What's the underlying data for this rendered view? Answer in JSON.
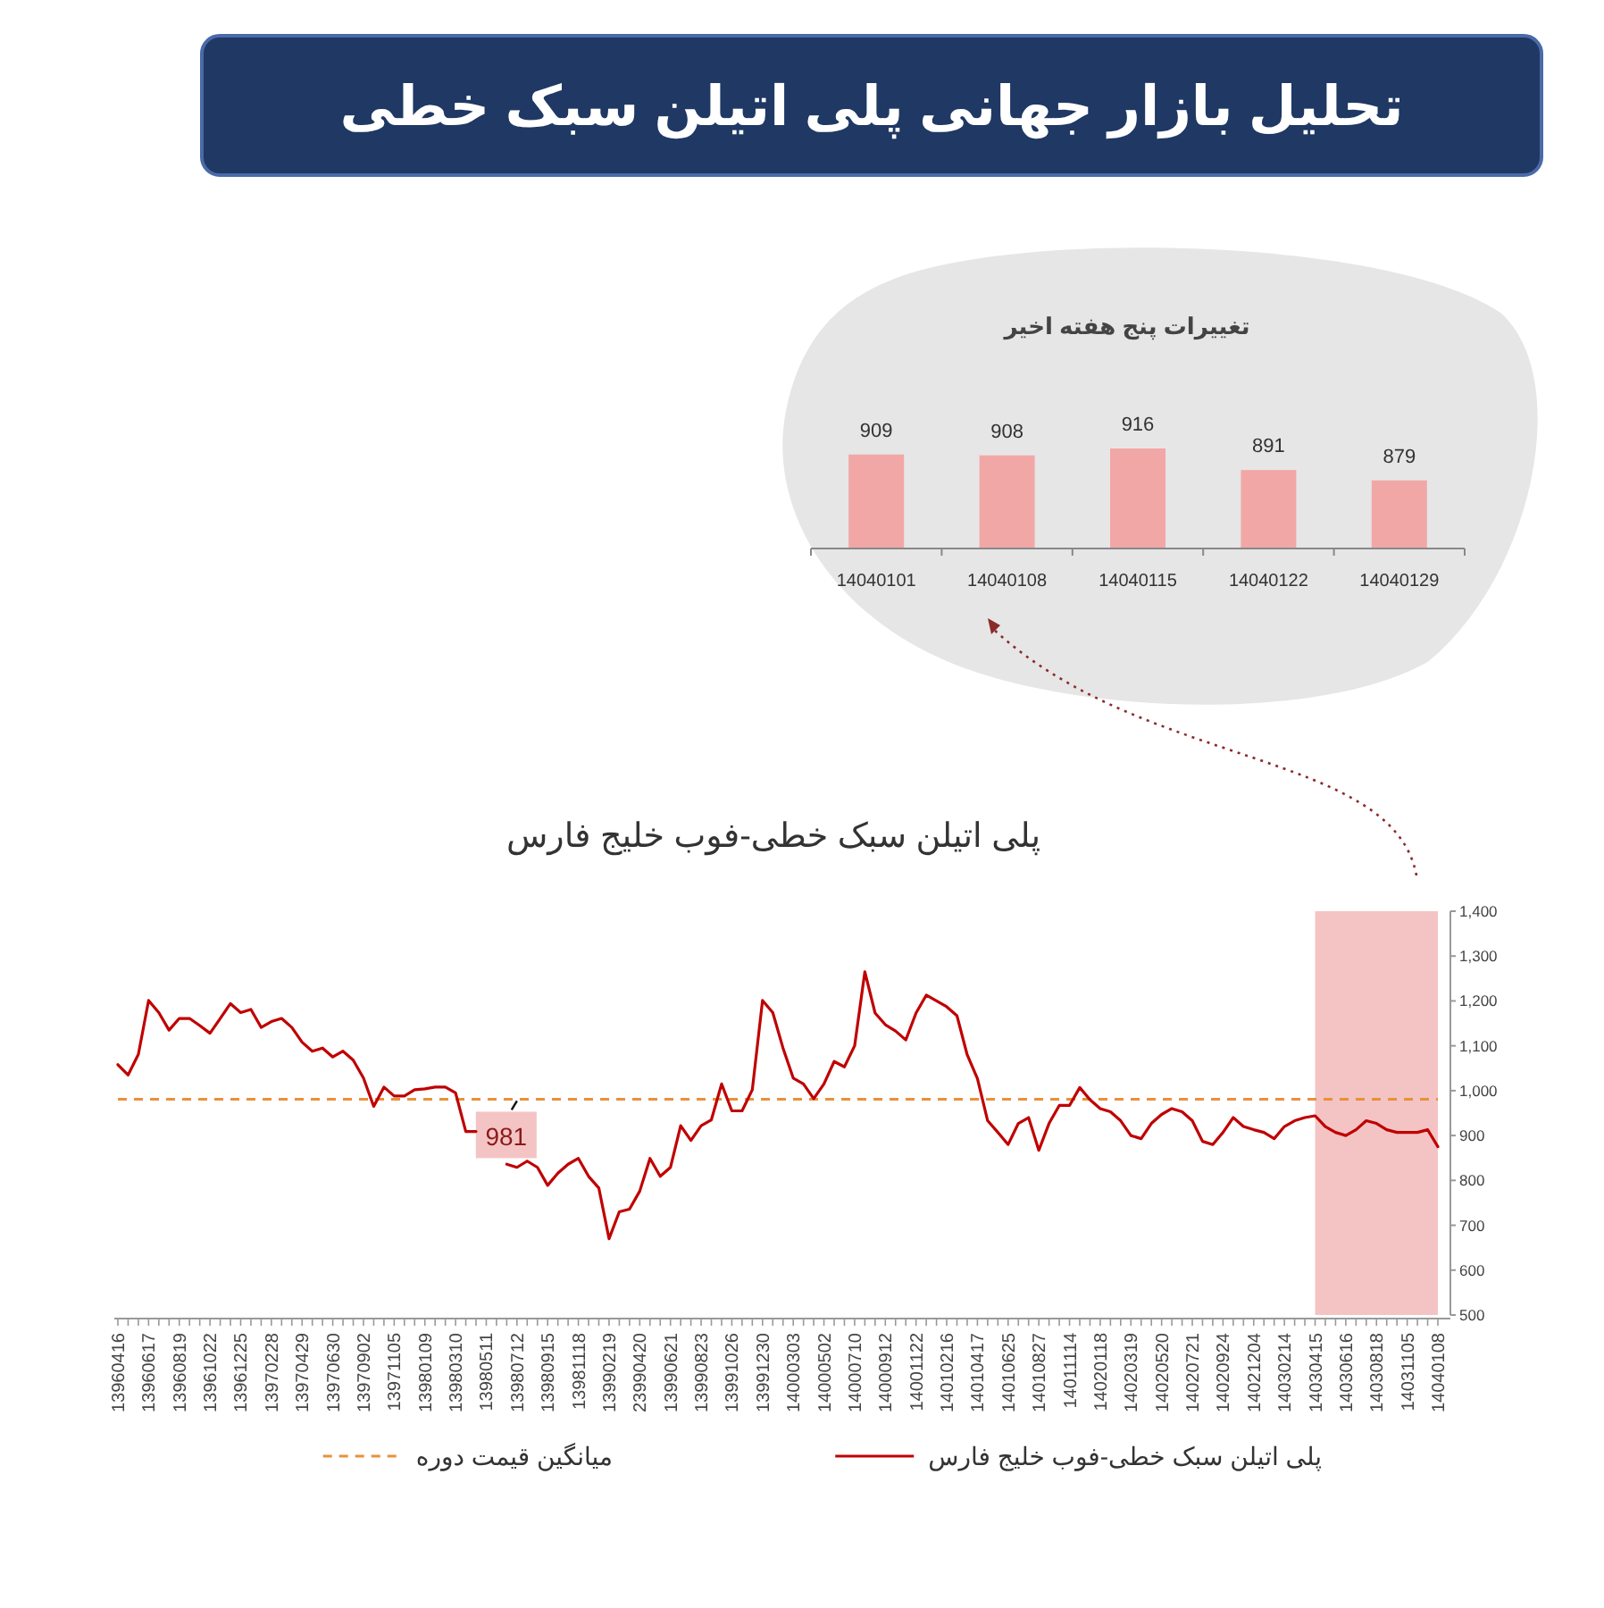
{
  "chart_data": [
    {
      "type": "other",
      "title": "تحلیل بازار جهانی پلی اتیلن سبک خطی"
    },
    {
      "type": "bar",
      "title": "تغییرات پنج هفته اخیر",
      "categories": [
        "14040101",
        "14040108",
        "14040115",
        "14040122",
        "14040129"
      ],
      "values": [
        909,
        908,
        916,
        891,
        879
      ],
      "color": "#f2a7a7",
      "data_labels": true,
      "ylim": [
        800,
        916
      ]
    },
    {
      "type": "line",
      "title": "پلی اتیلن سبک خطی-فوب خلیج فارس",
      "categories": [
        "13960416",
        null,
        null,
        "13960617",
        null,
        null,
        "13960819",
        null,
        null,
        "13961022",
        null,
        null,
        "13961225",
        null,
        null,
        "13970228",
        null,
        null,
        "13970429",
        null,
        null,
        "13970630",
        null,
        null,
        "13970902",
        null,
        null,
        "13971105",
        null,
        null,
        "13980109",
        null,
        null,
        "13980310",
        null,
        null,
        "13980511",
        null,
        null,
        "13980712",
        null,
        null,
        "13980915",
        null,
        null,
        "13981118",
        null,
        null,
        "13990219",
        null,
        null,
        "23990420",
        null,
        null,
        "13990621",
        null,
        null,
        "13990823",
        null,
        null,
        "13991026",
        null,
        null,
        "13991230",
        null,
        null,
        "14000303",
        null,
        null,
        "14000502",
        null,
        null,
        "14000710",
        null,
        null,
        "14000912",
        null,
        null,
        "14001122",
        null,
        null,
        "14010216",
        null,
        null,
        "14010417",
        null,
        null,
        "14010625",
        null,
        null,
        "14010827",
        null,
        null,
        "14011114",
        null,
        null,
        "14020118",
        null,
        null,
        "14020319",
        null,
        null,
        "14020520",
        null,
        null,
        "14020721",
        null,
        null,
        "14020924",
        null,
        null,
        "14021204",
        null,
        null,
        "14030214",
        null,
        null,
        "14030415",
        null,
        null,
        "14030616",
        null,
        null,
        "14030818",
        null,
        null,
        "14031105",
        null,
        null,
        "14040108"
      ],
      "series": [
        {
          "name": "پلی اتیلن سبک خطی-فوب خلیج فارس",
          "color": "#c00000",
          "values": [
            1058,
            1035,
            1081,
            1201,
            1174,
            1135,
            1161,
            1161,
            1145,
            1128,
            1161,
            1194,
            1174,
            1181,
            1141,
            1154,
            1161,
            1141,
            1108,
            1088,
            1095,
            1075,
            1088,
            1068,
            1028,
            965,
            1008,
            988,
            988,
            1002,
            1004,
            1008,
            1008,
            995,
            909,
            909,
            null,
            null,
            836,
            829,
            843,
            829,
            789,
            816,
            836,
            849,
            809,
            783,
            670,
            730,
            736,
            776,
            849,
            809,
            829,
            922,
            889,
            922,
            935,
            1015,
            955,
            955,
            1002,
            1201,
            1174,
            1095,
            1028,
            1015,
            982,
            1015,
            1065,
            1053,
            1100,
            1265,
            1173,
            1147,
            1133,
            1113,
            1173,
            1213,
            1200,
            1187,
            1167,
            1080,
            1027,
            933,
            907,
            880,
            927,
            940,
            867,
            927,
            967,
            967,
            1007,
            980,
            960,
            953,
            933,
            900,
            893,
            927,
            947,
            960,
            953,
            933,
            887,
            880,
            907,
            940,
            920,
            913,
            907,
            893,
            920,
            933,
            940,
            944,
            920,
            907,
            900,
            913,
            933,
            927,
            913,
            907,
            907,
            907,
            913,
            875
          ]
        }
      ],
      "ylim": [
        500,
        1400
      ],
      "yticks": [
        500,
        600,
        700,
        800,
        900,
        {
          "value": 1000,
          "label": "1,000"
        },
        {
          "value": 1100,
          "label": "1,100"
        },
        {
          "value": 1200,
          "label": "1,200"
        },
        {
          "value": 1300,
          "label": "1,300"
        },
        {
          "value": 1400,
          "label": "1,400"
        }
      ],
      "ref_lines": [
        {
          "axis": "y",
          "value": 981,
          "label": "میانگین قیمت دوره",
          "color": "#e8913a",
          "line_style": "dashed"
        }
      ],
      "bands": [
        {
          "axis": "x",
          "from": "14030415",
          "to": "14040108",
          "color": "#f4c4c4"
        }
      ],
      "annotations": [
        {
          "text": "981",
          "x": "13980712",
          "y": 981
        }
      ],
      "legend": "bottom"
    }
  ]
}
